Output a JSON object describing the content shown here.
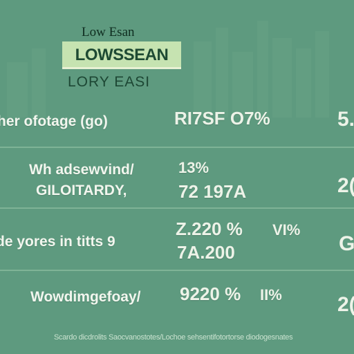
{
  "header": {
    "small_title": "Low Esan",
    "logo": "LOWSSEAN",
    "subtitle": "LORY EASI"
  },
  "rows": [
    {
      "label": "her ofotage (go)",
      "value": "RI7SF O7%",
      "edge": "5."
    },
    {
      "label": "Wh adsewvind/",
      "label2": "GILOITARDY,",
      "value": "13%",
      "value2": "72 197A",
      "edge": "2("
    },
    {
      "label": "de yores in titts 9",
      "value": "Z.220 %",
      "value_b": "VI%",
      "value2": "7A.200",
      "edge": "G"
    },
    {
      "label": "Wowdimgefoay/",
      "value": "9220 %",
      "value_b": "II%",
      "edge": "2("
    }
  ],
  "footer": "Scardo dicdrolits Saocvanostotes/Lochoe sehsentifotortorse diodogesnates",
  "colors": {
    "background": "#5e9a7f",
    "logo_box": "#c6e3b1",
    "text": "#edf3e8"
  }
}
